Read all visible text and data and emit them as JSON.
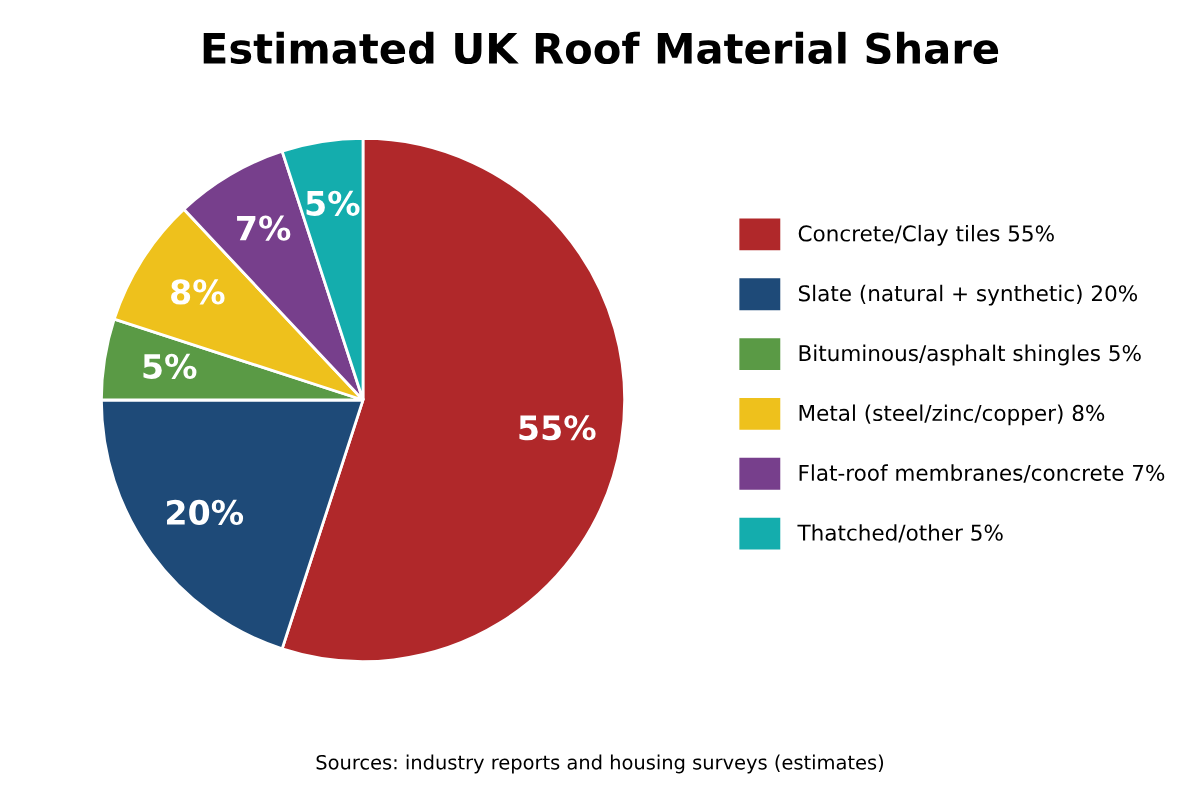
{
  "chart_data": {
    "type": "pie",
    "title": "Estimated UK Roof Material Share",
    "categories": [
      "Concrete/Clay tiles 55%",
      "Slate (natural + synthetic) 20%",
      "Bituminous/asphalt shingles 5%",
      "Metal (steel/zinc/copper) 8%",
      "Flat-roof membranes/concrete 7%",
      "Thatched/other 5%"
    ],
    "values": [
      55,
      20,
      5,
      8,
      7,
      5
    ],
    "value_labels": [
      "55%",
      "20%",
      "5%",
      "8%",
      "7%",
      "5%"
    ],
    "colors": [
      "#b0282a",
      "#1e4a78",
      "#5a9a45",
      "#eec11c",
      "#773f8c",
      "#14adad"
    ],
    "legend": "right",
    "annotations": [
      "Sources: industry reports and housing surveys (estimates)"
    ]
  }
}
